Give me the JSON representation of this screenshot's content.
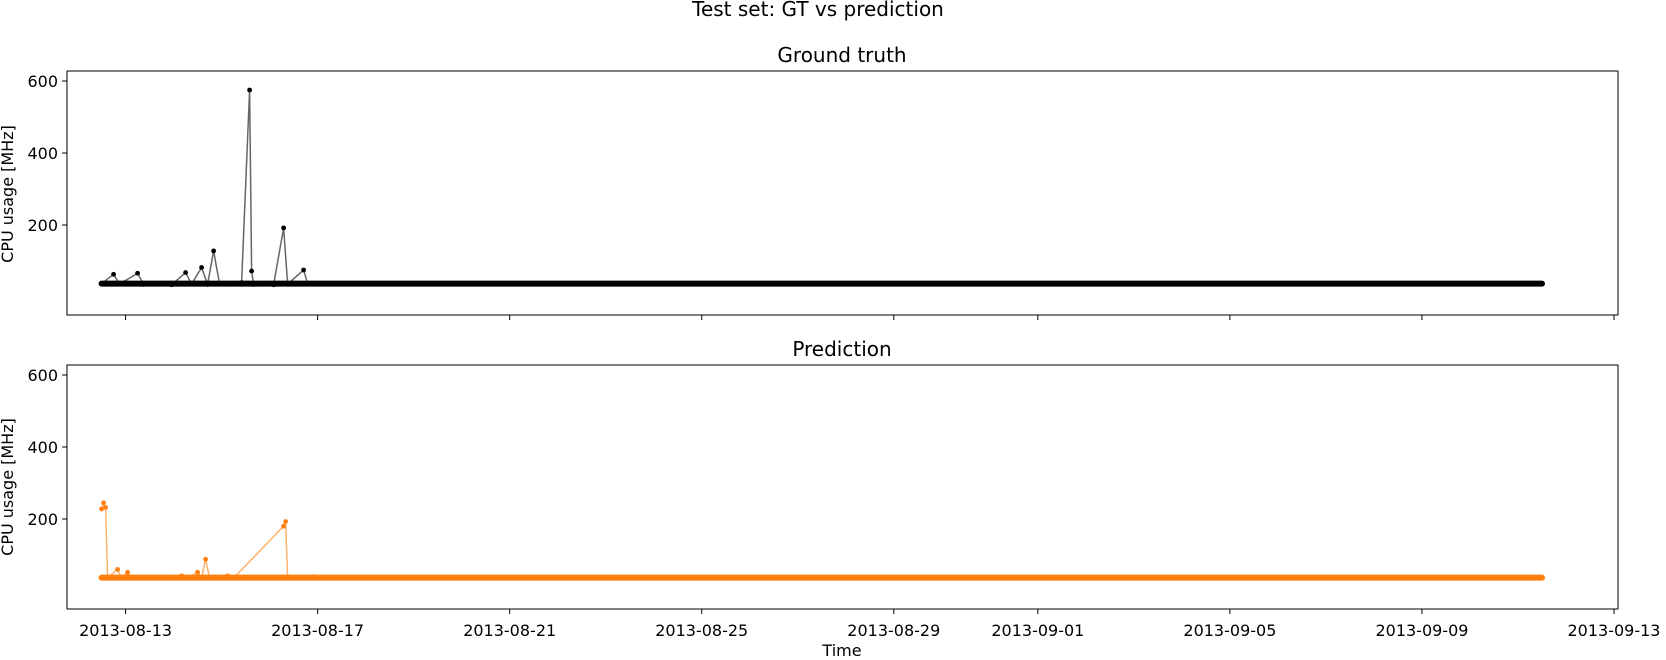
{
  "figure": {
    "suptitle": "Test set: GT vs prediction"
  },
  "chart_data": [
    {
      "type": "line",
      "title": "Ground truth",
      "xlabel": "",
      "ylabel": "CPU usage [MHz]",
      "ylim": [
        0,
        600
      ],
      "yticks": [
        200,
        400,
        600
      ],
      "xlim": [
        "2013-08-11",
        "2013-09-13"
      ],
      "xticks": [
        "2013-08-13",
        "2013-08-17",
        "2013-08-21",
        "2013-08-25",
        "2013-08-29",
        "2013-09-01",
        "2013-09-05",
        "2013-09-09",
        "2013-09-13"
      ],
      "show_xticklabels": false,
      "grid": false,
      "series": [
        {
          "color": "#000000",
          "baseline": 37,
          "baseline_span": [
            "2013-08-12 12:00",
            "2013-09-11 12:00"
          ],
          "values": [
            [
              "2013-08-12 12:00",
              37
            ],
            [
              "2013-08-12 18:00",
              63
            ],
            [
              "2013-08-12 21:00",
              36
            ],
            [
              "2013-08-13 06:00",
              66
            ],
            [
              "2013-08-13 09:00",
              35
            ],
            [
              "2013-08-13 20:00",
              38
            ],
            [
              "2013-08-13 23:00",
              34
            ],
            [
              "2013-08-14 06:00",
              68
            ],
            [
              "2013-08-14 09:00",
              36
            ],
            [
              "2013-08-14 14:00",
              82
            ],
            [
              "2013-08-14 17:00",
              35
            ],
            [
              "2013-08-14 20:00",
              128
            ],
            [
              "2013-08-14 23:00",
              36
            ],
            [
              "2013-08-15 10:00",
              40
            ],
            [
              "2013-08-15 14:00",
              575
            ],
            [
              "2013-08-15 15:00",
              72
            ],
            [
              "2013-08-15 16:00",
              35
            ],
            [
              "2013-08-15 22:00",
              38
            ],
            [
              "2013-08-16 02:00",
              34
            ],
            [
              "2013-08-16 07:00",
              192
            ],
            [
              "2013-08-16 09:00",
              36
            ],
            [
              "2013-08-16 17:00",
              75
            ],
            [
              "2013-08-16 19:00",
              37
            ],
            [
              "2013-09-11 12:00",
              37
            ]
          ]
        }
      ]
    },
    {
      "type": "line",
      "title": "Prediction",
      "xlabel": "Time",
      "ylabel": "CPU usage [MHz]",
      "ylim": [
        0,
        600
      ],
      "yticks": [
        200,
        400,
        600
      ],
      "xlim": [
        "2013-08-11",
        "2013-09-13"
      ],
      "xticks": [
        "2013-08-13",
        "2013-08-17",
        "2013-08-21",
        "2013-08-25",
        "2013-08-29",
        "2013-09-01",
        "2013-09-05",
        "2013-09-09",
        "2013-09-13"
      ],
      "show_xticklabels": true,
      "grid": false,
      "series": [
        {
          "color": "#ff7f0e",
          "baseline": 37,
          "baseline_span": [
            "2013-08-12 12:00",
            "2013-09-11 12:00"
          ],
          "values": [
            [
              "2013-08-12 12:00",
              228
            ],
            [
              "2013-08-12 13:00",
              245
            ],
            [
              "2013-08-12 14:00",
              232
            ],
            [
              "2013-08-12 15:00",
              37
            ],
            [
              "2013-08-12 20:00",
              60
            ],
            [
              "2013-08-12 22:00",
              36
            ],
            [
              "2013-08-13 01:00",
              52
            ],
            [
              "2013-08-13 03:00",
              37
            ],
            [
              "2013-08-14 04:00",
              42
            ],
            [
              "2013-08-14 07:00",
              36
            ],
            [
              "2013-08-14 12:00",
              52
            ],
            [
              "2013-08-14 14:00",
              36
            ],
            [
              "2013-08-14 16:00",
              88
            ],
            [
              "2013-08-14 18:00",
              37
            ],
            [
              "2013-08-15 03:00",
              42
            ],
            [
              "2013-08-15 06:00",
              36
            ],
            [
              "2013-08-16 07:00",
              180
            ],
            [
              "2013-08-16 08:00",
              193
            ],
            [
              "2013-08-16 09:00",
              37
            ],
            [
              "2013-08-16 22:00",
              40
            ],
            [
              "2013-08-16 23:00",
              37
            ],
            [
              "2013-09-11 12:00",
              37
            ]
          ]
        }
      ]
    }
  ]
}
